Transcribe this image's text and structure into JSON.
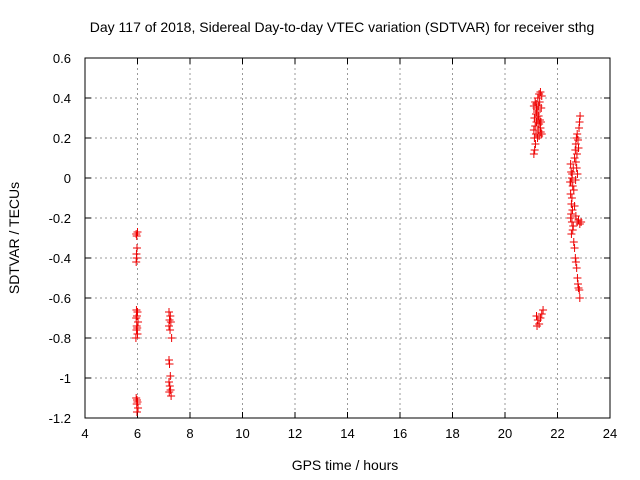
{
  "chart_data": {
    "type": "scatter",
    "title": "Day 117 of 2018, Sidereal Day-to-day VTEC variation (SDTVAR) for receiver sthg",
    "xlabel": "GPS time / hours",
    "ylabel": "SDTVAR / TECUs",
    "xlim": [
      4,
      24
    ],
    "ylim": [
      -1.2,
      0.6
    ],
    "xticks": [
      "4",
      "6",
      "8",
      "10",
      "12",
      "14",
      "16",
      "18",
      "20",
      "22",
      "24"
    ],
    "yticks": [
      "-1.2",
      "-1",
      "-0.8",
      "-0.6",
      "-0.4",
      "-0.2",
      "0",
      "0.2",
      "0.4",
      "0.6"
    ],
    "grid": true,
    "marker": "plus",
    "color": "#ee0000",
    "series": [
      {
        "points": [
          [
            5.95,
            -0.28
          ],
          [
            5.97,
            -0.29
          ],
          [
            6.0,
            -0.27
          ],
          [
            5.98,
            -0.35
          ],
          [
            5.96,
            -0.38
          ],
          [
            5.97,
            -0.4
          ],
          [
            5.95,
            -0.42
          ],
          [
            5.96,
            -0.66
          ],
          [
            6.0,
            -0.67
          ],
          [
            5.98,
            -0.69
          ],
          [
            5.95,
            -0.7
          ],
          [
            6.02,
            -0.72
          ],
          [
            5.97,
            -0.74
          ],
          [
            5.99,
            -0.75
          ],
          [
            5.96,
            -0.76
          ],
          [
            6.0,
            -0.78
          ],
          [
            5.94,
            -0.8
          ],
          [
            5.95,
            -1.1
          ],
          [
            5.98,
            -1.11
          ],
          [
            6.0,
            -1.12
          ],
          [
            5.97,
            -1.13
          ],
          [
            6.02,
            -1.15
          ],
          [
            5.98,
            -1.17
          ],
          [
            7.2,
            -0.67
          ],
          [
            7.25,
            -0.69
          ],
          [
            7.22,
            -0.71
          ],
          [
            7.27,
            -0.72
          ],
          [
            7.2,
            -0.74
          ],
          [
            7.24,
            -0.76
          ],
          [
            7.3,
            -0.8
          ],
          [
            7.2,
            -0.91
          ],
          [
            7.22,
            -0.93
          ],
          [
            7.25,
            -0.99
          ],
          [
            7.2,
            -1.02
          ],
          [
            7.23,
            -1.04
          ],
          [
            7.26,
            -1.06
          ],
          [
            7.21,
            -1.07
          ],
          [
            7.28,
            -1.09
          ],
          [
            21.1,
            0.36
          ],
          [
            21.15,
            0.38
          ],
          [
            21.2,
            0.35
          ],
          [
            21.25,
            0.4
          ],
          [
            21.3,
            0.42
          ],
          [
            21.35,
            0.43
          ],
          [
            21.4,
            0.41
          ],
          [
            21.12,
            0.3
          ],
          [
            21.18,
            0.32
          ],
          [
            21.22,
            0.33
          ],
          [
            21.27,
            0.36
          ],
          [
            21.32,
            0.38
          ],
          [
            21.38,
            0.35
          ],
          [
            21.1,
            0.24
          ],
          [
            21.15,
            0.26
          ],
          [
            21.2,
            0.28
          ],
          [
            21.25,
            0.29
          ],
          [
            21.3,
            0.27
          ],
          [
            21.35,
            0.25
          ],
          [
            21.4,
            0.22
          ],
          [
            21.12,
            0.2
          ],
          [
            21.18,
            0.22
          ],
          [
            21.24,
            0.2
          ],
          [
            21.3,
            0.21
          ],
          [
            21.36,
            0.23
          ],
          [
            21.16,
            0.17
          ],
          [
            21.13,
            0.14
          ],
          [
            21.1,
            0.12
          ],
          [
            21.22,
            0.34
          ],
          [
            21.28,
            0.31
          ],
          [
            21.33,
            0.29
          ],
          [
            21.19,
            0.37
          ],
          [
            21.26,
            0.24
          ],
          [
            21.37,
            0.28
          ],
          [
            21.2,
            -0.69
          ],
          [
            21.25,
            -0.71
          ],
          [
            21.3,
            -0.73
          ],
          [
            21.35,
            -0.7
          ],
          [
            21.4,
            -0.68
          ],
          [
            21.45,
            -0.66
          ],
          [
            21.22,
            -0.74
          ],
          [
            22.5,
            0.07
          ],
          [
            22.52,
            0.03
          ],
          [
            22.55,
            0.0
          ],
          [
            22.48,
            -0.02
          ],
          [
            22.6,
            0.05
          ],
          [
            22.58,
            -0.04
          ],
          [
            22.62,
            -0.06
          ],
          [
            22.5,
            -0.08
          ],
          [
            22.55,
            -0.1
          ],
          [
            22.53,
            -0.13
          ],
          [
            22.57,
            -0.16
          ],
          [
            22.52,
            -0.18
          ],
          [
            22.5,
            -0.2
          ],
          [
            22.55,
            -0.22
          ],
          [
            22.6,
            -0.24
          ],
          [
            22.58,
            -0.26
          ],
          [
            22.53,
            -0.28
          ],
          [
            22.51,
            -0.02
          ],
          [
            22.56,
            0.02
          ],
          [
            22.65,
            0.1
          ],
          [
            22.68,
            0.14
          ],
          [
            22.7,
            0.17
          ],
          [
            22.72,
            0.2
          ],
          [
            22.75,
            0.22
          ],
          [
            22.78,
            0.19
          ],
          [
            22.8,
            0.15
          ],
          [
            22.7,
            0.08
          ],
          [
            22.73,
            0.05
          ],
          [
            22.76,
            0.02
          ],
          [
            22.69,
            -0.01
          ],
          [
            22.74,
            0.12
          ],
          [
            22.82,
            0.25
          ],
          [
            22.84,
            0.28
          ],
          [
            22.86,
            0.31
          ],
          [
            22.62,
            -0.32
          ],
          [
            22.65,
            -0.35
          ],
          [
            22.68,
            -0.4
          ],
          [
            22.7,
            -0.42
          ],
          [
            22.73,
            -0.45
          ],
          [
            22.76,
            -0.5
          ],
          [
            22.78,
            -0.53
          ],
          [
            22.8,
            -0.55
          ],
          [
            22.83,
            -0.56
          ],
          [
            22.85,
            -0.6
          ],
          [
            22.75,
            -0.22
          ],
          [
            22.8,
            -0.21
          ],
          [
            22.85,
            -0.23
          ],
          [
            22.9,
            -0.22
          ],
          [
            22.65,
            -0.14
          ],
          [
            22.7,
            -0.19
          ]
        ]
      }
    ]
  }
}
